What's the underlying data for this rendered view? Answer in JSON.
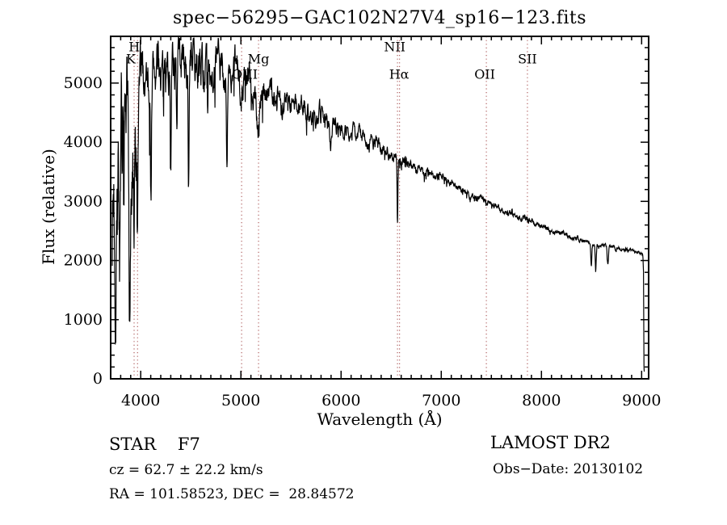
{
  "title": "spec−56295−GAC102N27V4_sp16−123.fits",
  "footer": {
    "class_line": "STAR    F7",
    "cz_line": "cz = 62.7 ± 22.2 km/s",
    "radec_line": "RA = 101.58523, DEC =  28.84572",
    "survey": "LAMOST DR2",
    "obs_date": "Obs−Date: 20130102"
  },
  "chart_data": {
    "type": "line",
    "title": "spec−56295−GAC102N27V4_sp16−123.fits",
    "xlabel": "Wavelength (Å)",
    "ylabel": "Flux (relative)",
    "xlim": [
      3700,
      9070
    ],
    "ylim": [
      0,
      5790
    ],
    "x_major_ticks": [
      4000,
      5000,
      6000,
      7000,
      8000,
      9000
    ],
    "x_minor_step": 100,
    "y_major_ticks": [
      0,
      1000,
      2000,
      3000,
      4000,
      5000
    ],
    "y_minor_step": 200,
    "grid": false,
    "legend": null,
    "line_color": "#000000",
    "marker_line_color": "#a04040",
    "spectral_lines": [
      {
        "label": "H",
        "wavelength": 3968,
        "row": 1,
        "dx": -4
      },
      {
        "label": "K",
        "wavelength": 3934,
        "row": 2,
        "dx": -4
      },
      {
        "label": "OIII",
        "wavelength": 5007,
        "row": 3,
        "dx": 4
      },
      {
        "label": "Mg",
        "wavelength": 5176,
        "row": 2,
        "dx": 0
      },
      {
        "label": "NII",
        "wavelength": 6584,
        "row": 1,
        "dx": -6
      },
      {
        "label": "Hα",
        "wavelength": 6563,
        "row": 3,
        "dx": 2
      },
      {
        "label": "OII",
        "wavelength": 7450,
        "row": 3,
        "dx": -2
      },
      {
        "label": "SII",
        "wavelength": 7860,
        "row": 2,
        "dx": 0
      }
    ],
    "spectrum": {
      "description": "Stellar (F7) spectrum: flux (relative) vs wavelength (Å). Continuum and noise amplitude are [wavelength, value] control points; absorption dips are Gaussian features reaching min_flux.",
      "wavelength_start": 3716,
      "wavelength_end": 9026,
      "step": 2.5,
      "seed": 7,
      "continuum": [
        [
          3716,
          2750
        ],
        [
          3740,
          3300
        ],
        [
          3975,
          3250
        ],
        [
          3995,
          5050
        ],
        [
          4050,
          5150
        ],
        [
          4200,
          5250
        ],
        [
          4400,
          5300
        ],
        [
          4600,
          5320
        ],
        [
          4750,
          5260
        ],
        [
          4900,
          5120
        ],
        [
          5050,
          5030
        ],
        [
          5250,
          4880
        ],
        [
          5500,
          4680
        ],
        [
          5750,
          4470
        ],
        [
          6000,
          4260
        ],
        [
          6250,
          4060
        ],
        [
          6500,
          3800
        ],
        [
          6750,
          3590
        ],
        [
          7000,
          3380
        ],
        [
          7250,
          3160
        ],
        [
          7500,
          2950
        ],
        [
          7750,
          2760
        ],
        [
          8000,
          2570
        ],
        [
          8250,
          2430
        ],
        [
          8500,
          2290
        ],
        [
          8750,
          2210
        ],
        [
          8950,
          2150
        ],
        [
          9012,
          2110
        ],
        [
          9019,
          1800
        ],
        [
          9023,
          200
        ],
        [
          9026,
          120
        ]
      ],
      "noise_amplitude": [
        [
          3716,
          1150
        ],
        [
          3970,
          1050
        ],
        [
          3995,
          400
        ],
        [
          4600,
          330
        ],
        [
          5100,
          260
        ],
        [
          5400,
          190
        ],
        [
          5800,
          140
        ],
        [
          6200,
          110
        ],
        [
          6563,
          85
        ],
        [
          6800,
          70
        ],
        [
          7200,
          55
        ],
        [
          7600,
          45
        ],
        [
          8200,
          35
        ],
        [
          8800,
          28
        ],
        [
          9026,
          22
        ]
      ],
      "absorption_dips": [
        {
          "center": 3748,
          "min_flux": 2250,
          "sigma": 6
        },
        {
          "center": 3795,
          "min_flux": 2050,
          "sigma": 6
        },
        {
          "center": 3848,
          "min_flux": 2150,
          "sigma": 6
        },
        {
          "center": 3890,
          "min_flux": 1900,
          "sigma": 7
        },
        {
          "center": 3934,
          "min_flux": 1310,
          "sigma": 6
        },
        {
          "center": 3969,
          "min_flux": 1490,
          "sigma": 6
        },
        {
          "center": 4102,
          "min_flux": 3440,
          "sigma": 5
        },
        {
          "center": 4227,
          "min_flux": 4350,
          "sigma": 4
        },
        {
          "center": 4300,
          "min_flux": 3990,
          "sigma": 5
        },
        {
          "center": 4360,
          "min_flux": 3680,
          "sigma": 5
        },
        {
          "center": 4478,
          "min_flux": 3320,
          "sigma": 5
        },
        {
          "center": 4668,
          "min_flux": 4300,
          "sigma": 4
        },
        {
          "center": 4861,
          "min_flux": 3330,
          "sigma": 5
        },
        {
          "center": 5175,
          "min_flux": 4240,
          "sigma": 14
        },
        {
          "center": 5893,
          "min_flux": 3940,
          "sigma": 7
        },
        {
          "center": 6563,
          "min_flux": 2620,
          "sigma": 4
        },
        {
          "center": 7605,
          "min_flux": 2820,
          "sigma": 9
        },
        {
          "center": 8498,
          "min_flux": 1900,
          "sigma": 5
        },
        {
          "center": 8542,
          "min_flux": 1860,
          "sigma": 5
        },
        {
          "center": 8662,
          "min_flux": 1915,
          "sigma": 6
        }
      ]
    }
  }
}
